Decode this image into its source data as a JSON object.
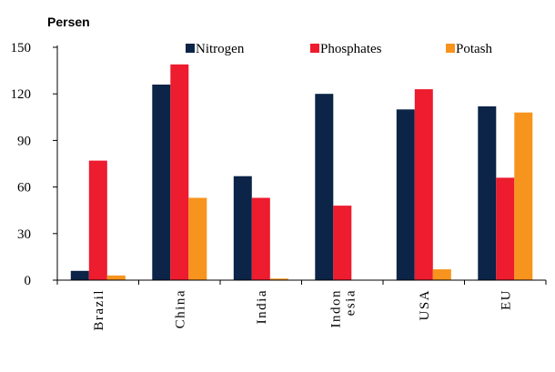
{
  "chart_data": {
    "type": "bar",
    "ylabel": "Persen",
    "categories": [
      [
        "Brazil"
      ],
      [
        "China"
      ],
      [
        "India"
      ],
      [
        "Indon",
        "esia"
      ],
      [
        "USA"
      ],
      [
        "EU"
      ]
    ],
    "series": [
      {
        "name": "Nitrogen",
        "color": "#0b2447",
        "values": [
          6,
          126,
          67,
          120,
          110,
          112
        ]
      },
      {
        "name": "Phosphates",
        "color": "#ed1c2e",
        "values": [
          77,
          139,
          53,
          48,
          123,
          66
        ]
      },
      {
        "name": "Potash",
        "color": "#f7941d",
        "values": [
          3,
          53,
          1,
          0,
          7,
          108
        ]
      }
    ],
    "ylim": [
      0,
      150
    ],
    "yticks": [
      0,
      30,
      60,
      90,
      120,
      150
    ],
    "grid": false,
    "legend_position": "top"
  }
}
